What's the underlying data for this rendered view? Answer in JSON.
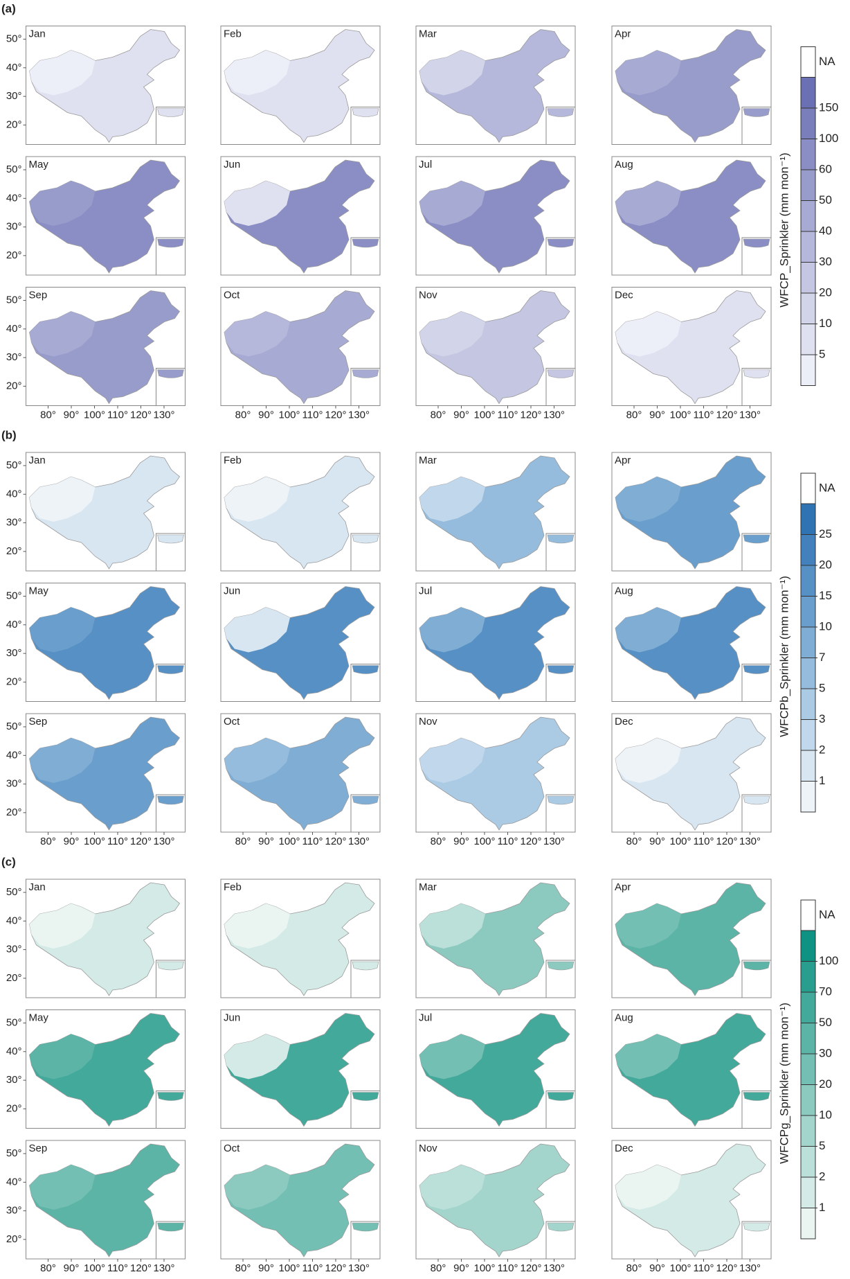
{
  "months": [
    "Jan",
    "Feb",
    "Mar",
    "Apr",
    "May",
    "Jun",
    "Jul",
    "Aug",
    "Sep",
    "Oct",
    "Nov",
    "Dec"
  ],
  "lat_ticks": [
    {
      "value": 50,
      "label": "50°"
    },
    {
      "value": 40,
      "label": "40°"
    },
    {
      "value": 30,
      "label": "30°"
    },
    {
      "value": 20,
      "label": "20°"
    }
  ],
  "lon_ticks": [
    {
      "value": 80,
      "label": "80°"
    },
    {
      "value": 90,
      "label": "90°"
    },
    {
      "value": 100,
      "label": "100°"
    },
    {
      "value": 110,
      "label": "110°"
    },
    {
      "value": 120,
      "label": "120°"
    },
    {
      "value": 130,
      "label": "130°"
    }
  ],
  "panels": [
    {
      "label": "(a)",
      "colorbar": {
        "title": "WFCP_Sprinkler (mm mon⁻¹)",
        "na": "NA",
        "ticks": [
          150,
          100,
          60,
          50,
          40,
          30,
          20,
          10,
          5
        ],
        "colors": [
          "#6b6fb3",
          "#7a7ebb",
          "#8a8ec4",
          "#989ccb",
          "#a7aad3",
          "#b5b8da",
          "#c4c6e2",
          "#d2d4e9",
          "#e0e1f0",
          "#eceef8"
        ]
      }
    },
    {
      "label": "(b)",
      "colorbar": {
        "title": "WFCPb_Sprinkler (mm mon⁻¹)",
        "na": "NA",
        "ticks": [
          25,
          20,
          15,
          10,
          7,
          5,
          3,
          2,
          1
        ],
        "colors": [
          "#2f73b3",
          "#4281bb",
          "#5690c4",
          "#6a9ecc",
          "#80add4",
          "#95bcdc",
          "#abcae4",
          "#c1d8ec",
          "#d8e6f2",
          "#eef3f8"
        ]
      }
    },
    {
      "label": "(c)",
      "colorbar": {
        "title": "WFCPg_Sprinkler (mm mon⁻¹)",
        "na": "NA",
        "ticks": [
          100,
          70,
          50,
          30,
          20,
          10,
          5,
          2,
          1
        ],
        "colors": [
          "#0e9281",
          "#2a9e8e",
          "#43a99a",
          "#5cb4a7",
          "#74bfb3",
          "#8ccac0",
          "#a4d5cc",
          "#bbe0d9",
          "#d3eae6",
          "#eaf5f2"
        ]
      }
    }
  ]
}
